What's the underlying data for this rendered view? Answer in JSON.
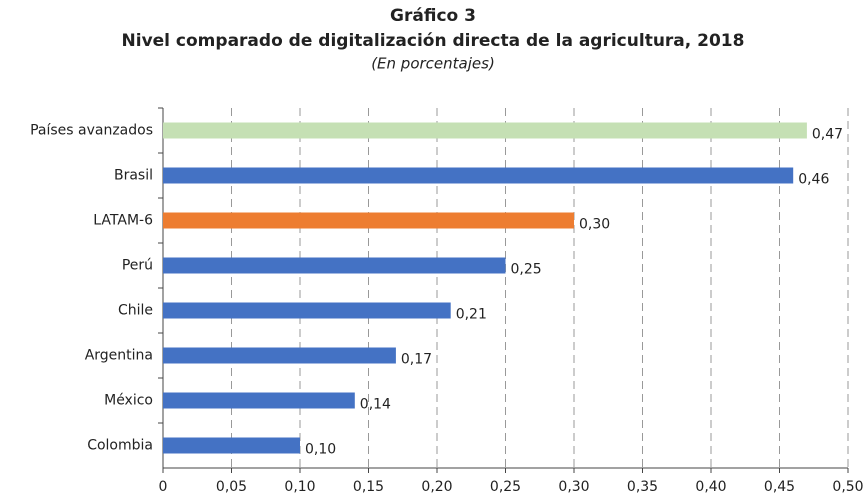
{
  "chart_data": {
    "type": "bar",
    "orientation": "horizontal",
    "title": "Gráfico 3",
    "subtitle": "Nivel comparado de digitalización directa de la agricultura, 2018",
    "note": "(En porcentajes)",
    "categories": [
      "Países avanzados",
      "Brasil",
      "LATAM-6",
      "Perú",
      "Chile",
      "Argentina",
      "México",
      "Colombia"
    ],
    "values": [
      0.47,
      0.46,
      0.3,
      0.25,
      0.21,
      0.17,
      0.14,
      0.1
    ],
    "value_labels": [
      "0,47",
      "0,46",
      "0,30",
      "0,25",
      "0,21",
      "0,17",
      "0,14",
      "0,10"
    ],
    "colors": [
      "#c5e0b4",
      "#4472c4",
      "#ed7d31",
      "#4472c4",
      "#4472c4",
      "#4472c4",
      "#4472c4",
      "#4472c4"
    ],
    "xlim": [
      0,
      0.5
    ],
    "xticks": [
      0,
      {
        "value": 0.05,
        "label": "0,05"
      },
      {
        "value": 0.1,
        "label": "0,10"
      },
      {
        "value": 0.15,
        "label": "0,15"
      },
      {
        "value": 0.2,
        "label": "0,20"
      },
      {
        "value": 0.25,
        "label": "0,25"
      },
      {
        "value": 0.3,
        "label": "0,30"
      },
      {
        "value": 0.35,
        "label": "0,35"
      },
      {
        "value": 0.4,
        "label": "0,40"
      },
      {
        "value": 0.45,
        "label": "0,45"
      },
      {
        "value": 0.5,
        "label": "0,50"
      }
    ],
    "grid": true
  }
}
